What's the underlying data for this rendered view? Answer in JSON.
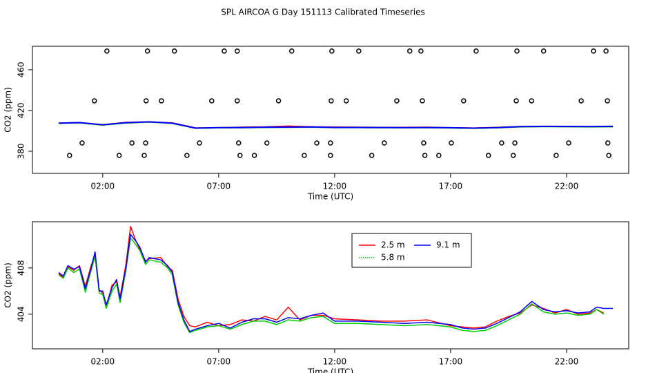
{
  "chart_data": [
    {
      "type": "line",
      "title": "SPL AIRCOA G  Day 151113  Calibrated Timeseries",
      "xlabel": "Time (UTC)",
      "ylabel": "CO2 (ppm)",
      "xlim": [
        -1.03,
        24.68
      ],
      "ylim": [
        358.3,
        483
      ],
      "xticks": [
        {
          "value": 2,
          "label": "02:00"
        },
        {
          "value": 7,
          "label": "07:00"
        },
        {
          "value": 12,
          "label": "12:00"
        },
        {
          "value": 17,
          "label": "17:00"
        },
        {
          "value": 22,
          "label": "22:00"
        }
      ],
      "yticks": [
        380,
        420,
        460
      ],
      "x": [
        0.1,
        1,
        2,
        3,
        4,
        5,
        6,
        7,
        8,
        9,
        10,
        11,
        12,
        13,
        14,
        15,
        16,
        17,
        18,
        19,
        20,
        21,
        22,
        23,
        24
      ],
      "series": [
        {
          "name": "2.5 m",
          "color": "#ff0000",
          "values": [
            407.5,
            408.2,
            405.8,
            408.3,
            408.8,
            407.8,
            402.9,
            403.0,
            403.5,
            403.8,
            404.6,
            403.9,
            403.6,
            403.5,
            403.4,
            403.4,
            403.5,
            403.0,
            402.8,
            403.4,
            404.1,
            404.5,
            404.4,
            404.1,
            404.2
          ]
        },
        {
          "name": "5.8 m",
          "color": "#00cd00",
          "values": [
            407.4,
            407.9,
            405.7,
            407.8,
            408.7,
            407.4,
            402.6,
            403.0,
            403.1,
            403.4,
            403.5,
            403.7,
            403.2,
            403.2,
            403.1,
            403.0,
            403.1,
            402.9,
            402.5,
            403.0,
            404.0,
            404.2,
            404.1,
            404.0,
            404.1
          ]
        },
        {
          "name": "9.1 m",
          "color": "#0000ff",
          "values": [
            407.6,
            408.1,
            406.0,
            408.0,
            408.9,
            407.6,
            402.7,
            403.2,
            403.3,
            403.6,
            403.7,
            403.9,
            403.4,
            403.4,
            403.3,
            403.2,
            403.3,
            403.1,
            402.7,
            403.2,
            404.2,
            404.4,
            404.3,
            404.2,
            404.5
          ]
        }
      ],
      "points": {
        "x": [
          2.18,
          3.93,
          5.09,
          7.24,
          7.8,
          10.15,
          11.88,
          13.04,
          15.24,
          15.72,
          18.1,
          19.86,
          21.01,
          23.16,
          23.7,
          1.64,
          3.87,
          4.53,
          6.7,
          7.8,
          9.58,
          11.85,
          12.5,
          14.68,
          15.78,
          17.56,
          19.83,
          20.49,
          22.63,
          23.76,
          1.11,
          3.26,
          3.85,
          6.17,
          7.86,
          9.08,
          11.23,
          11.82,
          14.14,
          15.84,
          17.03,
          19.2,
          19.77,
          22.09,
          23.78,
          0.57,
          2.71,
          3.79,
          5.63,
          7.92,
          8.54,
          10.69,
          11.82,
          13.6,
          15.89,
          16.49,
          18.63,
          19.7,
          21.55,
          23.82
        ],
        "values": [
          478.3,
          478.3,
          478.3,
          478.3,
          478.3,
          478.3,
          478.3,
          478.3,
          478.3,
          478.3,
          478.3,
          478.3,
          478.3,
          478.3,
          478.3,
          429.5,
          429.5,
          429.5,
          429.5,
          429.5,
          429.5,
          429.5,
          429.5,
          429.5,
          429.5,
          429.5,
          429.5,
          429.5,
          429.5,
          429.5,
          388.1,
          388.1,
          388.1,
          388.1,
          388.1,
          388.1,
          388.1,
          388.1,
          388.1,
          388.1,
          388.1,
          388.1,
          388.1,
          388.1,
          388.1,
          375.9,
          375.9,
          375.9,
          375.9,
          375.9,
          375.9,
          375.9,
          375.9,
          375.9,
          375.9,
          375.9,
          375.9,
          375.9,
          375.9,
          375.9
        ]
      }
    },
    {
      "type": "line",
      "xlabel": "Time (UTC)",
      "ylabel": "CO2 (ppm)",
      "legend": "top-center",
      "xlim": [
        -1.03,
        24.68
      ],
      "ylim": [
        401.0,
        412.0
      ],
      "xticks": [
        {
          "value": 2,
          "label": "02:00"
        },
        {
          "value": 7,
          "label": "07:00"
        },
        {
          "value": 12,
          "label": "12:00"
        },
        {
          "value": 17,
          "label": "17:00"
        },
        {
          "value": 22,
          "label": "22:00"
        }
      ],
      "yticks": [
        404,
        408
      ],
      "x": [
        0.1,
        0.3,
        0.5,
        0.75,
        1.0,
        1.25,
        1.5,
        1.67,
        1.85,
        2.0,
        2.15,
        2.4,
        2.6,
        2.75,
        3.0,
        3.2,
        3.4,
        3.6,
        3.85,
        4.0,
        4.5,
        4.8,
        5.0,
        5.25,
        5.5,
        5.75,
        6.0,
        6.5,
        7.0,
        7.5,
        8.0,
        8.5,
        9.0,
        9.5,
        10.0,
        10.5,
        11.0,
        11.5,
        12.0,
        13.0,
        14.0,
        15.0,
        16.0,
        17.0,
        17.5,
        18.0,
        18.5,
        19.0,
        19.5,
        20.0,
        20.5,
        21.0,
        21.5,
        22.0,
        22.5,
        23.0,
        23.3,
        23.6,
        24.0
      ],
      "series": [
        {
          "name": "2.5 m",
          "color": "#ff0000",
          "values": [
            407.5,
            407.2,
            408.1,
            407.8,
            408.2,
            406.4,
            408.2,
            409.2,
            406.1,
            405.8,
            404.6,
            406.5,
            406.8,
            405.5,
            408.3,
            411.6,
            410.5,
            409.6,
            408.6,
            408.8,
            408.9,
            408.1,
            407.8,
            405.3,
            403.8,
            403.0,
            402.9,
            403.3,
            403.0,
            403.1,
            403.5,
            403.4,
            403.8,
            403.5,
            404.6,
            403.5,
            403.9,
            403.9,
            403.6,
            403.5,
            403.4,
            403.4,
            403.5,
            403.0,
            402.9,
            402.8,
            402.9,
            403.4,
            403.8,
            404.1,
            404.8,
            404.5,
            404.1,
            404.4,
            404.0,
            404.1,
            404.4,
            404.1,
            null
          ]
        },
        {
          "name": "5.8 m",
          "color": "#00cd00",
          "values": [
            407.4,
            407.1,
            408.0,
            407.6,
            407.9,
            405.9,
            407.8,
            409.0,
            405.8,
            405.7,
            404.5,
            406.0,
            406.6,
            405.0,
            407.8,
            410.6,
            410.1,
            409.5,
            408.3,
            408.7,
            408.5,
            408.0,
            407.4,
            404.8,
            403.3,
            402.4,
            402.6,
            402.9,
            403.0,
            402.7,
            403.1,
            403.4,
            403.4,
            403.1,
            403.5,
            403.4,
            403.7,
            403.8,
            403.2,
            403.2,
            403.1,
            403.0,
            403.1,
            402.9,
            402.6,
            402.5,
            402.6,
            403.0,
            403.5,
            404.0,
            404.9,
            404.2,
            404.0,
            404.1,
            403.9,
            404.0,
            404.4,
            404.0,
            null
          ]
        },
        {
          "name": "9.1 m",
          "color": "#0000ff",
          "values": [
            407.6,
            407.3,
            408.2,
            407.9,
            408.1,
            406.2,
            408.0,
            409.4,
            406.0,
            406.0,
            404.8,
            406.3,
            407.0,
            405.3,
            408.0,
            410.9,
            410.4,
            409.8,
            408.5,
            408.9,
            408.7,
            408.2,
            407.6,
            405.0,
            403.5,
            402.5,
            402.7,
            403.0,
            403.2,
            402.8,
            403.3,
            403.6,
            403.6,
            403.3,
            403.7,
            403.6,
            403.9,
            404.1,
            403.4,
            403.4,
            403.3,
            403.2,
            403.3,
            403.1,
            402.8,
            402.7,
            402.8,
            403.2,
            403.7,
            404.2,
            405.1,
            404.4,
            404.2,
            404.3,
            404.1,
            404.2,
            404.6,
            404.5,
            404.5
          ]
        }
      ]
    }
  ]
}
